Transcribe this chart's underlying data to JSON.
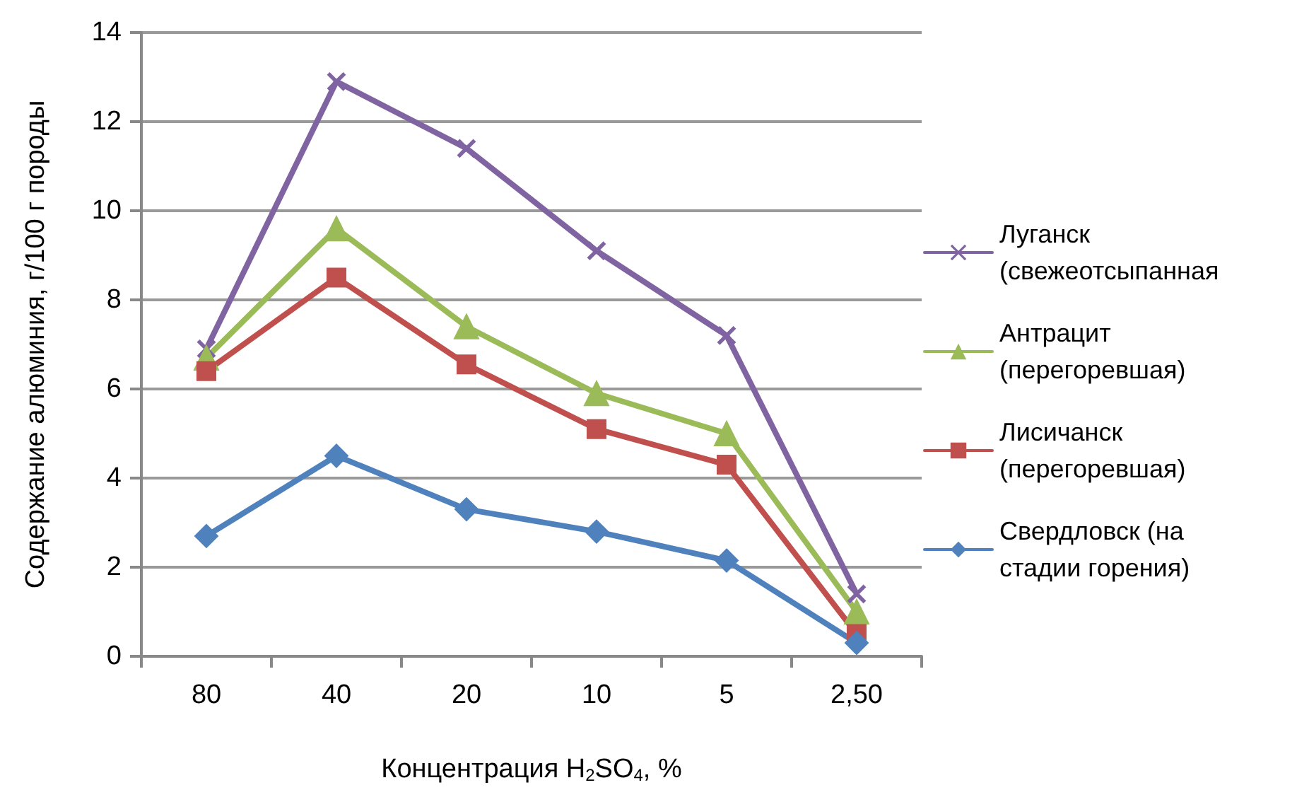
{
  "chart_data": {
    "type": "line",
    "xlabel": "Концентрация H$_{2}$SO$_{4}$, %",
    "ylabel": "Содержание алюминия, г/100 г породы",
    "categories": [
      "80",
      "40",
      "20",
      "10",
      "5",
      "2,50"
    ],
    "series": [
      {
        "name": "Луганск (свежеотсыпанная",
        "color": "#8064a2",
        "marker": "cross",
        "values": [
          6.9,
          12.9,
          11.4,
          9.1,
          7.2,
          1.4
        ]
      },
      {
        "name": "Антрацит (перегоревшая)",
        "color": "#9bbb59",
        "marker": "triangle",
        "values": [
          6.7,
          9.6,
          7.4,
          5.9,
          5.0,
          1.0
        ]
      },
      {
        "name": "Лисичанск (перегоревшая)",
        "color": "#c0504d",
        "marker": "square",
        "values": [
          6.4,
          8.5,
          6.55,
          5.1,
          4.3,
          0.5
        ]
      },
      {
        "name": "Свердловск (на стадии горения)",
        "color": "#4f81bd",
        "marker": "diamond",
        "values": [
          2.7,
          4.5,
          3.3,
          2.8,
          2.15,
          0.3
        ]
      }
    ],
    "ylim": [
      0,
      14
    ],
    "yticks": [
      0,
      2,
      4,
      6,
      8,
      10,
      12,
      14
    ],
    "grid": "y",
    "legend": "right"
  }
}
